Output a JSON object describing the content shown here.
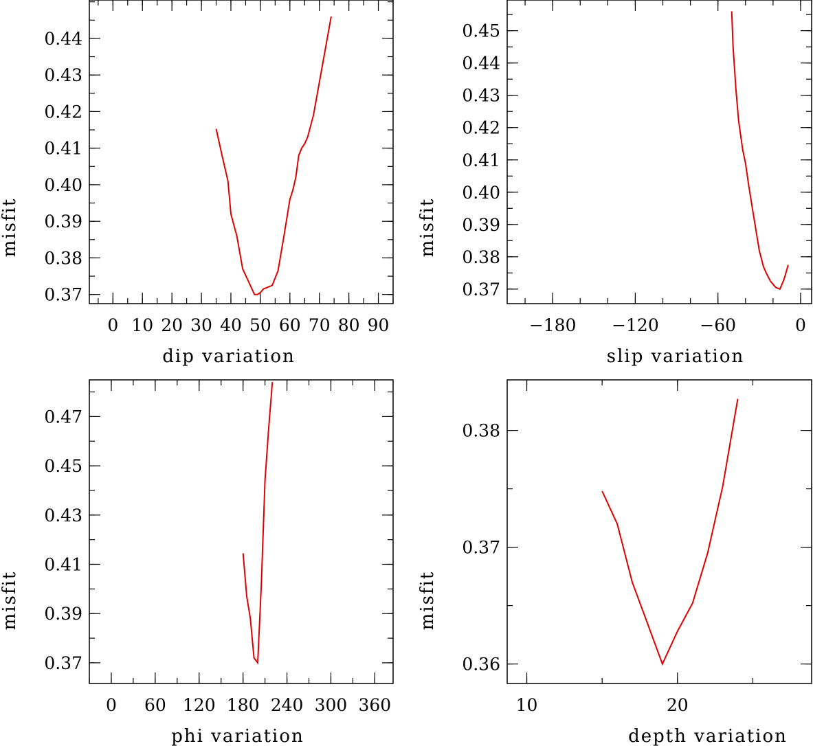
{
  "chart_data": [
    {
      "type": "line",
      "id": "dip",
      "xlabel": "dip     variation",
      "ylabel": "misfit",
      "xlim": [
        -8,
        95
      ],
      "ylim": [
        0.3675,
        0.4505
      ],
      "xticks": [
        0,
        10,
        20,
        30,
        40,
        50,
        60,
        70,
        80,
        90
      ],
      "xtick_labels": [
        "0",
        "10",
        "20",
        "30",
        "40",
        "50",
        "60",
        "70",
        "80",
        "90"
      ],
      "x_minor_step": 5,
      "yticks": [
        0.37,
        0.38,
        0.39,
        0.4,
        0.41,
        0.42,
        0.43,
        0.44
      ],
      "ytick_labels": [
        "0.37",
        "0.38",
        "0.39",
        "0.40",
        "0.41",
        "0.42",
        "0.43",
        "0.44"
      ],
      "y_minor_step": 0.005,
      "series": [
        {
          "name": "dip misfit",
          "color": "#e00000",
          "x": [
            35,
            37,
            39,
            40,
            42,
            44,
            46,
            48,
            49,
            50,
            51,
            52,
            54,
            56,
            58,
            60,
            61,
            62,
            63,
            64,
            65,
            66,
            68,
            70,
            72,
            74
          ],
          "y": [
            0.4153,
            0.408,
            0.401,
            0.392,
            0.386,
            0.377,
            0.3735,
            0.37,
            0.37,
            0.3705,
            0.3715,
            0.3718,
            0.3725,
            0.3765,
            0.386,
            0.396,
            0.3985,
            0.402,
            0.408,
            0.41,
            0.4112,
            0.413,
            0.419,
            0.428,
            0.437,
            0.446
          ]
        }
      ]
    },
    {
      "type": "line",
      "id": "slip",
      "xlabel": "slip   variation",
      "ylabel": "misfit",
      "xlim": [
        -213,
        8
      ],
      "ylim": [
        0.3655,
        0.4595
      ],
      "xticks": [
        -180,
        -120,
        -60,
        0
      ],
      "xtick_labels": [
        "−180",
        "−120",
        "−60",
        "0"
      ],
      "x_minor_step": 20,
      "yticks": [
        0.37,
        0.38,
        0.39,
        0.4,
        0.41,
        0.42,
        0.43,
        0.44,
        0.45
      ],
      "ytick_labels": [
        "0.37",
        "0.38",
        "0.39",
        "0.40",
        "0.41",
        "0.42",
        "0.43",
        "0.44",
        "0.45"
      ],
      "y_minor_step": 0.005,
      "series": [
        {
          "name": "slip misfit",
          "color": "#e00000",
          "x": [
            -50,
            -49,
            -47,
            -45,
            -42,
            -40,
            -38,
            -35,
            -30,
            -27,
            -25,
            -22,
            -20,
            -18,
            -15,
            -12,
            -9
          ],
          "y": [
            0.456,
            0.445,
            0.432,
            0.422,
            0.413,
            0.409,
            0.403,
            0.395,
            0.382,
            0.377,
            0.375,
            0.3725,
            0.3715,
            0.3705,
            0.37,
            0.373,
            0.3775
          ]
        }
      ]
    },
    {
      "type": "line",
      "id": "phi",
      "xlabel": "phi     variation",
      "ylabel": "misfit",
      "xlim": [
        -30,
        385
      ],
      "ylim": [
        0.3616,
        0.4849
      ],
      "xticks": [
        0,
        60,
        120,
        180,
        240,
        300,
        360
      ],
      "xtick_labels": [
        "0",
        "60",
        "120",
        "180",
        "240",
        "300",
        "360"
      ],
      "x_minor_step": 30,
      "yticks": [
        0.37,
        0.39,
        0.41,
        0.43,
        0.45,
        0.47
      ],
      "ytick_labels": [
        "0.37",
        "0.39",
        "0.41",
        "0.43",
        "0.45",
        "0.47"
      ],
      "y_minor_step": 0.01,
      "series": [
        {
          "name": "phi misfit",
          "color": "#e00000",
          "x": [
            180,
            185,
            190,
            195,
            200,
            205,
            210,
            215,
            220
          ],
          "y": [
            0.4145,
            0.397,
            0.388,
            0.372,
            0.37,
            0.402,
            0.444,
            0.465,
            0.484
          ]
        }
      ]
    },
    {
      "type": "line",
      "id": "depth",
      "xlabel": "depth   variation",
      "ylabel": "misfit",
      "xlim": [
        8.7,
        28.9
      ],
      "ylim": [
        0.35833,
        0.38433
      ],
      "xticks": [
        10,
        20
      ],
      "xtick_labels": [
        "10",
        "20"
      ],
      "x_minor_step": 5,
      "yticks": [
        0.36,
        0.37,
        0.38
      ],
      "ytick_labels": [
        "0.36",
        "0.37",
        "0.38"
      ],
      "y_minor_step": 0.005,
      "series": [
        {
          "name": "depth misfit",
          "color": "#e00000",
          "x": [
            15,
            16,
            17,
            18,
            19,
            20,
            21,
            22,
            23,
            24
          ],
          "y": [
            0.3748,
            0.372,
            0.367,
            0.3635,
            0.36,
            0.3628,
            0.3652,
            0.3695,
            0.3752,
            0.3827
          ]
        }
      ]
    }
  ]
}
